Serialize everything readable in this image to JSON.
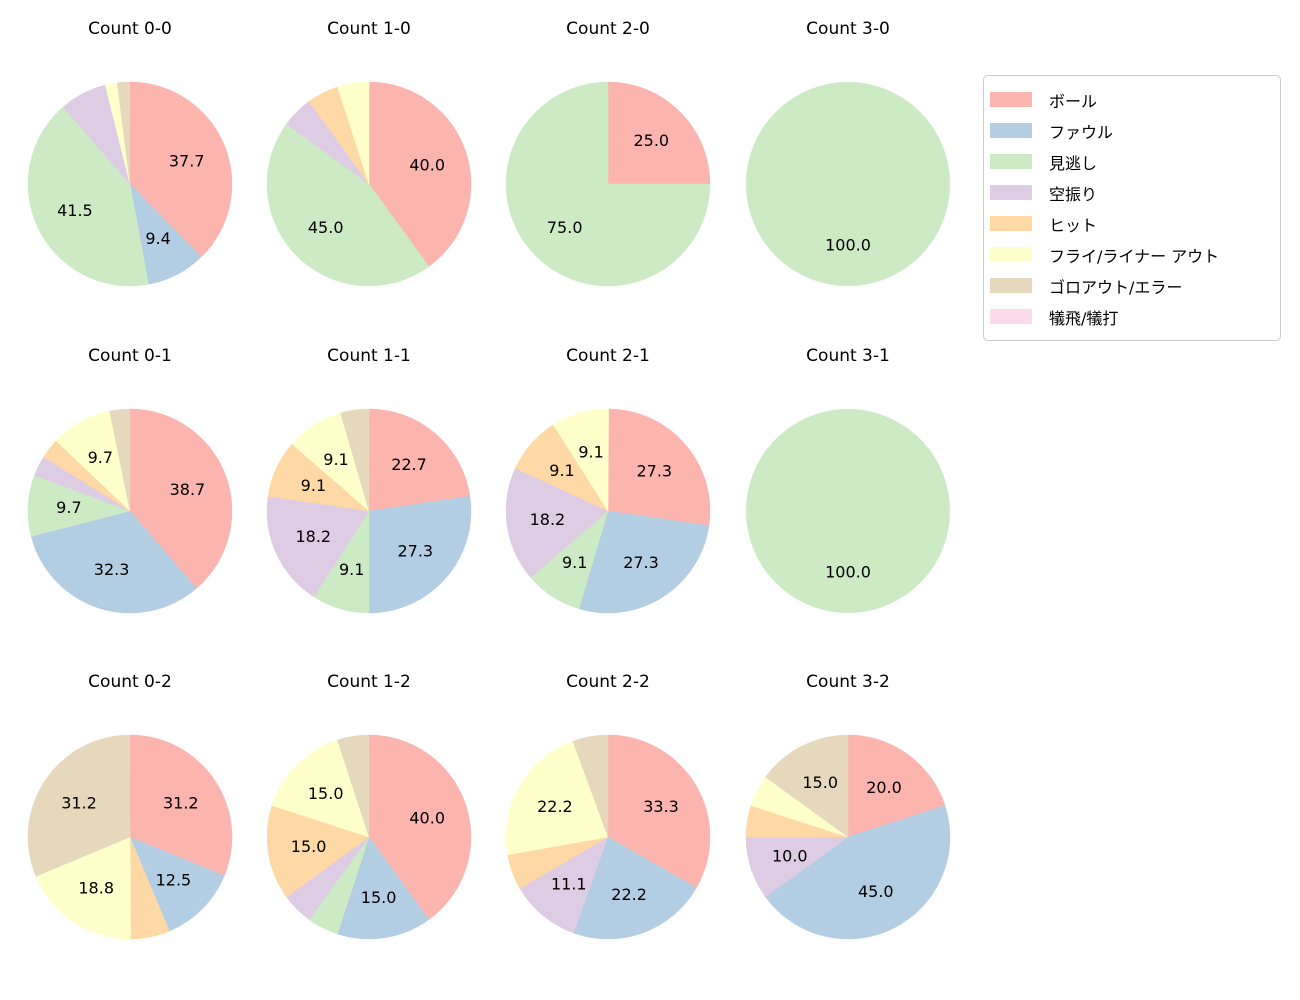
{
  "figure": {
    "background": "#ffffff",
    "text_color": "#000000"
  },
  "legend": {
    "position": "top-right",
    "border_color": "#cccccc",
    "items": [
      {
        "label": "ボール",
        "color": "#fbb4ae"
      },
      {
        "label": "ファウル",
        "color": "#b3cde3"
      },
      {
        "label": "見逃し",
        "color": "#ccebc5"
      },
      {
        "label": "空振り",
        "color": "#decbe4"
      },
      {
        "label": "ヒット",
        "color": "#fed9a6"
      },
      {
        "label": "フライ/ライナー アウト",
        "color": "#ffffcc"
      },
      {
        "label": "ゴロアウト/エラー",
        "color": "#e5d8bd"
      },
      {
        "label": "犠飛/犠打",
        "color": "#fddaec"
      }
    ]
  },
  "chart_data": [
    {
      "type": "pie",
      "title": "Count 0-0",
      "start_angle": 90,
      "clockwise": true,
      "label_distance": 0.6,
      "slices": [
        {
          "category": "ボール",
          "value": 37.7,
          "label": "37.7"
        },
        {
          "category": "ファウル",
          "value": 9.4,
          "label": "9.4"
        },
        {
          "category": "見逃し",
          "value": 41.5,
          "label": "41.5"
        },
        {
          "category": "空振り",
          "value": 7.5,
          "label": ""
        },
        {
          "category": "フライ/ライナー アウト",
          "value": 1.9,
          "label": ""
        },
        {
          "category": "ゴロアウト/エラー",
          "value": 1.9,
          "label": ""
        }
      ]
    },
    {
      "type": "pie",
      "title": "Count 1-0",
      "start_angle": 90,
      "clockwise": true,
      "label_distance": 0.6,
      "slices": [
        {
          "category": "ボール",
          "value": 40.0,
          "label": "40.0"
        },
        {
          "category": "見逃し",
          "value": 45.0,
          "label": "45.0"
        },
        {
          "category": "空振り",
          "value": 5.0,
          "label": ""
        },
        {
          "category": "ヒット",
          "value": 5.0,
          "label": ""
        },
        {
          "category": "フライ/ライナー アウト",
          "value": 5.0,
          "label": ""
        }
      ]
    },
    {
      "type": "pie",
      "title": "Count 2-0",
      "start_angle": 90,
      "clockwise": true,
      "label_distance": 0.6,
      "slices": [
        {
          "category": "ボール",
          "value": 25.0,
          "label": "25.0"
        },
        {
          "category": "見逃し",
          "value": 75.0,
          "label": "75.0"
        }
      ]
    },
    {
      "type": "pie",
      "title": "Count 3-0",
      "start_angle": 90,
      "clockwise": true,
      "label_distance": 0.6,
      "slices": [
        {
          "category": "見逃し",
          "value": 100.0,
          "label": "100.0"
        }
      ]
    },
    {
      "type": "pie",
      "title": "Count 0-1",
      "start_angle": 90,
      "clockwise": true,
      "label_distance": 0.6,
      "slices": [
        {
          "category": "ボール",
          "value": 38.7,
          "label": "38.7"
        },
        {
          "category": "ファウル",
          "value": 32.3,
          "label": "32.3"
        },
        {
          "category": "見逃し",
          "value": 9.7,
          "label": "9.7"
        },
        {
          "category": "空振り",
          "value": 3.2,
          "label": ""
        },
        {
          "category": "ヒット",
          "value": 3.2,
          "label": ""
        },
        {
          "category": "フライ/ライナー アウト",
          "value": 9.7,
          "label": "9.7"
        },
        {
          "category": "ゴロアウト/エラー",
          "value": 3.2,
          "label": ""
        }
      ]
    },
    {
      "type": "pie",
      "title": "Count 1-1",
      "start_angle": 90,
      "clockwise": true,
      "label_distance": 0.6,
      "slices": [
        {
          "category": "ボール",
          "value": 22.7,
          "label": "22.7"
        },
        {
          "category": "ファウル",
          "value": 27.3,
          "label": "27.3"
        },
        {
          "category": "見逃し",
          "value": 9.1,
          "label": "9.1"
        },
        {
          "category": "空振り",
          "value": 18.2,
          "label": "18.2"
        },
        {
          "category": "ヒット",
          "value": 9.1,
          "label": "9.1"
        },
        {
          "category": "フライ/ライナー アウト",
          "value": 9.1,
          "label": "9.1"
        },
        {
          "category": "ゴロアウト/エラー",
          "value": 4.5,
          "label": ""
        }
      ]
    },
    {
      "type": "pie",
      "title": "Count 2-1",
      "start_angle": 90,
      "clockwise": true,
      "label_distance": 0.6,
      "slices": [
        {
          "category": "ボール",
          "value": 27.3,
          "label": "27.3"
        },
        {
          "category": "ファウル",
          "value": 27.3,
          "label": "27.3"
        },
        {
          "category": "見逃し",
          "value": 9.1,
          "label": "9.1"
        },
        {
          "category": "空振り",
          "value": 18.2,
          "label": "18.2"
        },
        {
          "category": "ヒット",
          "value": 9.1,
          "label": "9.1"
        },
        {
          "category": "フライ/ライナー アウト",
          "value": 9.1,
          "label": "9.1"
        }
      ]
    },
    {
      "type": "pie",
      "title": "Count 3-1",
      "start_angle": 90,
      "clockwise": true,
      "label_distance": 0.6,
      "slices": [
        {
          "category": "見逃し",
          "value": 100.0,
          "label": "100.0"
        }
      ]
    },
    {
      "type": "pie",
      "title": "Count 0-2",
      "start_angle": 90,
      "clockwise": true,
      "label_distance": 0.6,
      "slices": [
        {
          "category": "ボール",
          "value": 31.2,
          "label": "31.2"
        },
        {
          "category": "ファウル",
          "value": 12.5,
          "label": "12.5"
        },
        {
          "category": "ヒット",
          "value": 6.2,
          "label": ""
        },
        {
          "category": "フライ/ライナー アウト",
          "value": 18.8,
          "label": "18.8"
        },
        {
          "category": "ゴロアウト/エラー",
          "value": 31.2,
          "label": "31.2"
        }
      ]
    },
    {
      "type": "pie",
      "title": "Count 1-2",
      "start_angle": 90,
      "clockwise": true,
      "label_distance": 0.6,
      "slices": [
        {
          "category": "ボール",
          "value": 40.0,
          "label": "40.0"
        },
        {
          "category": "ファウル",
          "value": 15.0,
          "label": "15.0"
        },
        {
          "category": "見逃し",
          "value": 5.0,
          "label": ""
        },
        {
          "category": "空振り",
          "value": 5.0,
          "label": ""
        },
        {
          "category": "ヒット",
          "value": 15.0,
          "label": "15.0"
        },
        {
          "category": "フライ/ライナー アウト",
          "value": 15.0,
          "label": "15.0"
        },
        {
          "category": "ゴロアウト/エラー",
          "value": 5.0,
          "label": ""
        }
      ]
    },
    {
      "type": "pie",
      "title": "Count 2-2",
      "start_angle": 90,
      "clockwise": true,
      "label_distance": 0.6,
      "slices": [
        {
          "category": "ボール",
          "value": 33.3,
          "label": "33.3"
        },
        {
          "category": "ファウル",
          "value": 22.2,
          "label": "22.2"
        },
        {
          "category": "空振り",
          "value": 11.1,
          "label": "11.1"
        },
        {
          "category": "ヒット",
          "value": 5.6,
          "label": ""
        },
        {
          "category": "フライ/ライナー アウト",
          "value": 22.2,
          "label": "22.2"
        },
        {
          "category": "ゴロアウト/エラー",
          "value": 5.6,
          "label": ""
        }
      ]
    },
    {
      "type": "pie",
      "title": "Count 3-2",
      "start_angle": 90,
      "clockwise": true,
      "label_distance": 0.6,
      "slices": [
        {
          "category": "ボール",
          "value": 20.0,
          "label": "20.0"
        },
        {
          "category": "ファウル",
          "value": 45.0,
          "label": "45.0"
        },
        {
          "category": "空振り",
          "value": 10.0,
          "label": "10.0"
        },
        {
          "category": "ヒット",
          "value": 5.0,
          "label": ""
        },
        {
          "category": "フライ/ライナー アウト",
          "value": 5.0,
          "label": ""
        },
        {
          "category": "ゴロアウト/エラー",
          "value": 15.0,
          "label": "15.0"
        }
      ]
    }
  ]
}
